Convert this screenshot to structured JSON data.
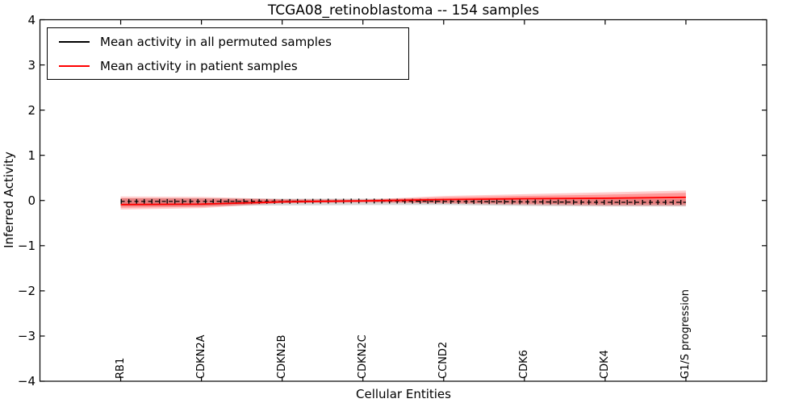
{
  "chart_data": {
    "type": "line",
    "title": "TCGA08_retinoblastoma -- 154 samples",
    "xlabel": "Cellular Entities",
    "ylabel": "Inferred Activity",
    "categories": [
      "RB1",
      "CDKN2A",
      "CDKN2B",
      "CDKN2C",
      "CCND2",
      "CDK6",
      "CDK4",
      "G1/S progression"
    ],
    "ylim": [
      -4,
      4
    ],
    "ytick_values": [
      4,
      3,
      2,
      1,
      0,
      -1,
      -2,
      -3,
      -4
    ],
    "ytick_labels": [
      "4",
      "3",
      "2",
      "1",
      "0",
      "−1",
      "−2",
      "−3",
      "−4"
    ],
    "grid": false,
    "legend_position": "upper left",
    "series": [
      {
        "name": "Mean activity in all permuted samples",
        "color": "#000000",
        "style": "dashed-with-plus-markers",
        "values": [
          -0.02,
          -0.02,
          -0.02,
          -0.01,
          -0.02,
          -0.03,
          -0.04,
          -0.04
        ]
      },
      {
        "name": "Mean activity in patient samples",
        "color": "#ff0000",
        "style": "solid",
        "values": [
          -0.09,
          -0.08,
          -0.03,
          -0.01,
          0.02,
          0.04,
          0.05,
          0.07
        ]
      }
    ],
    "bands": [
      {
        "name": "permuted-samples-spread",
        "color": "#999999",
        "opacity": 0.4,
        "upper": [
          0.05,
          0.05,
          0.04,
          0.04,
          0.04,
          0.03,
          0.03,
          0.03
        ],
        "lower": [
          -0.12,
          -0.12,
          -0.11,
          -0.1,
          -0.1,
          -0.12,
          -0.13,
          -0.13
        ]
      },
      {
        "name": "patient-samples-spread-outer",
        "color": "#ff0000",
        "opacity": 0.2,
        "upper": [
          0.09,
          0.08,
          0.03,
          0.02,
          0.1,
          0.14,
          0.18,
          0.22
        ],
        "lower": [
          -0.2,
          -0.17,
          -0.06,
          -0.04,
          -0.07,
          -0.1,
          -0.12,
          -0.12
        ]
      },
      {
        "name": "patient-samples-spread-inner",
        "color": "#ff0000",
        "opacity": 0.25,
        "upper": [
          0.05,
          0.045,
          0.02,
          0.015,
          0.07,
          0.1,
          0.13,
          0.17
        ],
        "lower": [
          -0.16,
          -0.14,
          -0.05,
          -0.03,
          -0.05,
          -0.07,
          -0.09,
          -0.09
        ]
      }
    ]
  }
}
